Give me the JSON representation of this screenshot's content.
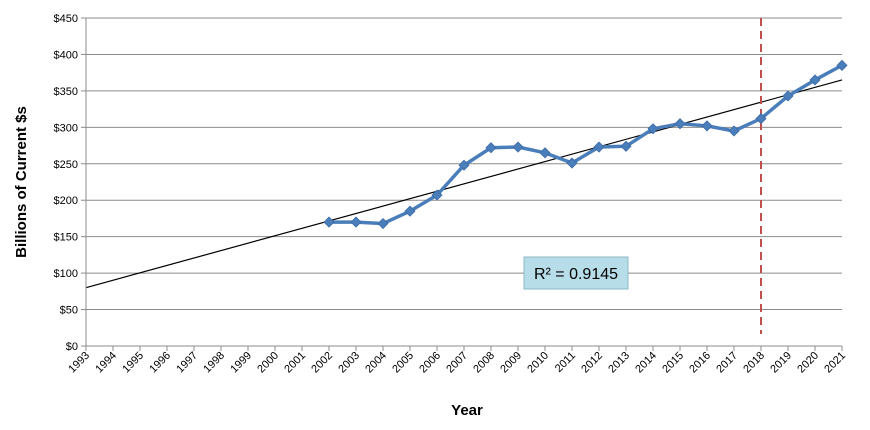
{
  "chart_data": {
    "type": "line",
    "xlabel": "Year",
    "ylabel": "Billions of Current $s",
    "x_categories": [
      "1993",
      "1994",
      "1995",
      "1996",
      "1997",
      "1998",
      "1999",
      "2000",
      "2001",
      "2002",
      "2003",
      "2004",
      "2005",
      "2006",
      "2007",
      "2008",
      "2009",
      "2010",
      "2011",
      "2012",
      "2013",
      "2014",
      "2015",
      "2016",
      "2017",
      "2018",
      "2019",
      "2020",
      "2021"
    ],
    "ylim": [
      0,
      450
    ],
    "y_ticks": [
      0,
      50,
      100,
      150,
      200,
      250,
      300,
      350,
      400,
      450
    ],
    "y_tick_labels": [
      "$0",
      "$50",
      "$100",
      "$150",
      "$200",
      "$250",
      "$300",
      "$350",
      "$400",
      "$450"
    ],
    "grid": "horizontal",
    "series": [
      {
        "color": "#4a7ebb",
        "marker": "diamond",
        "x": [
          "2002",
          "2003",
          "2004",
          "2005",
          "2006",
          "2007",
          "2008",
          "2009",
          "2010",
          "2011",
          "2012",
          "2013",
          "2014",
          "2015",
          "2016",
          "2017",
          "2018",
          "2019",
          "2020",
          "2021"
        ],
        "values": [
          170,
          170,
          168,
          185,
          207,
          248,
          272,
          273,
          265,
          251,
          273,
          274,
          298,
          305,
          302,
          295,
          312,
          343,
          365,
          385
        ]
      }
    ],
    "trendline": {
      "type": "linear",
      "color": "#000000",
      "start": {
        "x": "1993",
        "y": 80
      },
      "end": {
        "x": "2021",
        "y": 365
      }
    },
    "annotation": {
      "r_squared_label": "R² = 0.9145",
      "box_color": "#b7dde8"
    },
    "reference_line": {
      "x": "2018",
      "color": "#c0504d",
      "style": "dashed"
    }
  }
}
